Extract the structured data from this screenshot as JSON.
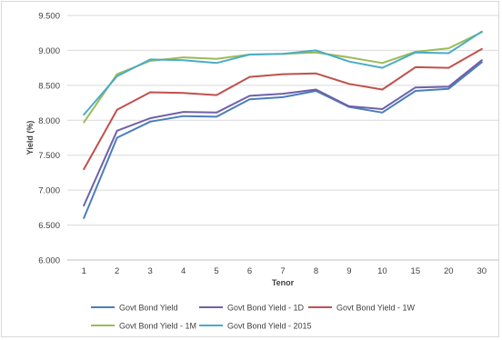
{
  "chart_data": {
    "type": "line",
    "xlabel": "Tenor",
    "ylabel": "Yield (%)",
    "categories": [
      "1",
      "2",
      "3",
      "4",
      "5",
      "6",
      "7",
      "8",
      "9",
      "10",
      "15",
      "20",
      "30"
    ],
    "ylim": [
      6.0,
      9.5
    ],
    "yticks": [
      "6.000",
      "6.500",
      "7.000",
      "7.500",
      "8.000",
      "8.500",
      "9.000",
      "9.500"
    ],
    "grid": "horizontal",
    "legend_position": "bottom",
    "series": [
      {
        "name": "Govt Bond Yield",
        "color": "#4a7ebb",
        "values": [
          6.6,
          7.75,
          7.98,
          8.06,
          8.05,
          8.3,
          8.33,
          8.42,
          8.19,
          8.11,
          8.42,
          8.45,
          8.83
        ]
      },
      {
        "name": "Govt Bond Yield - 1D",
        "color": "#7060a8",
        "values": [
          6.78,
          7.85,
          8.03,
          8.12,
          8.11,
          8.35,
          8.38,
          8.44,
          8.2,
          8.16,
          8.47,
          8.48,
          8.86
        ]
      },
      {
        "name": "Govt Bond Yield - 1W",
        "color": "#c0504d",
        "values": [
          7.3,
          8.15,
          8.4,
          8.39,
          8.36,
          8.62,
          8.66,
          8.67,
          8.52,
          8.44,
          8.76,
          8.75,
          9.02
        ]
      },
      {
        "name": "Govt Bond Yield - 1M",
        "color": "#9bbb59",
        "values": [
          7.97,
          8.66,
          8.85,
          8.9,
          8.88,
          8.94,
          8.95,
          8.97,
          8.9,
          8.82,
          8.98,
          9.03,
          9.26
        ]
      },
      {
        "name": "Govt Bond Yield - 2015",
        "color": "#4bacc6",
        "values": [
          8.08,
          8.63,
          8.87,
          8.86,
          8.82,
          8.94,
          8.95,
          9.0,
          8.84,
          8.75,
          8.97,
          8.96,
          9.27
        ]
      }
    ]
  }
}
